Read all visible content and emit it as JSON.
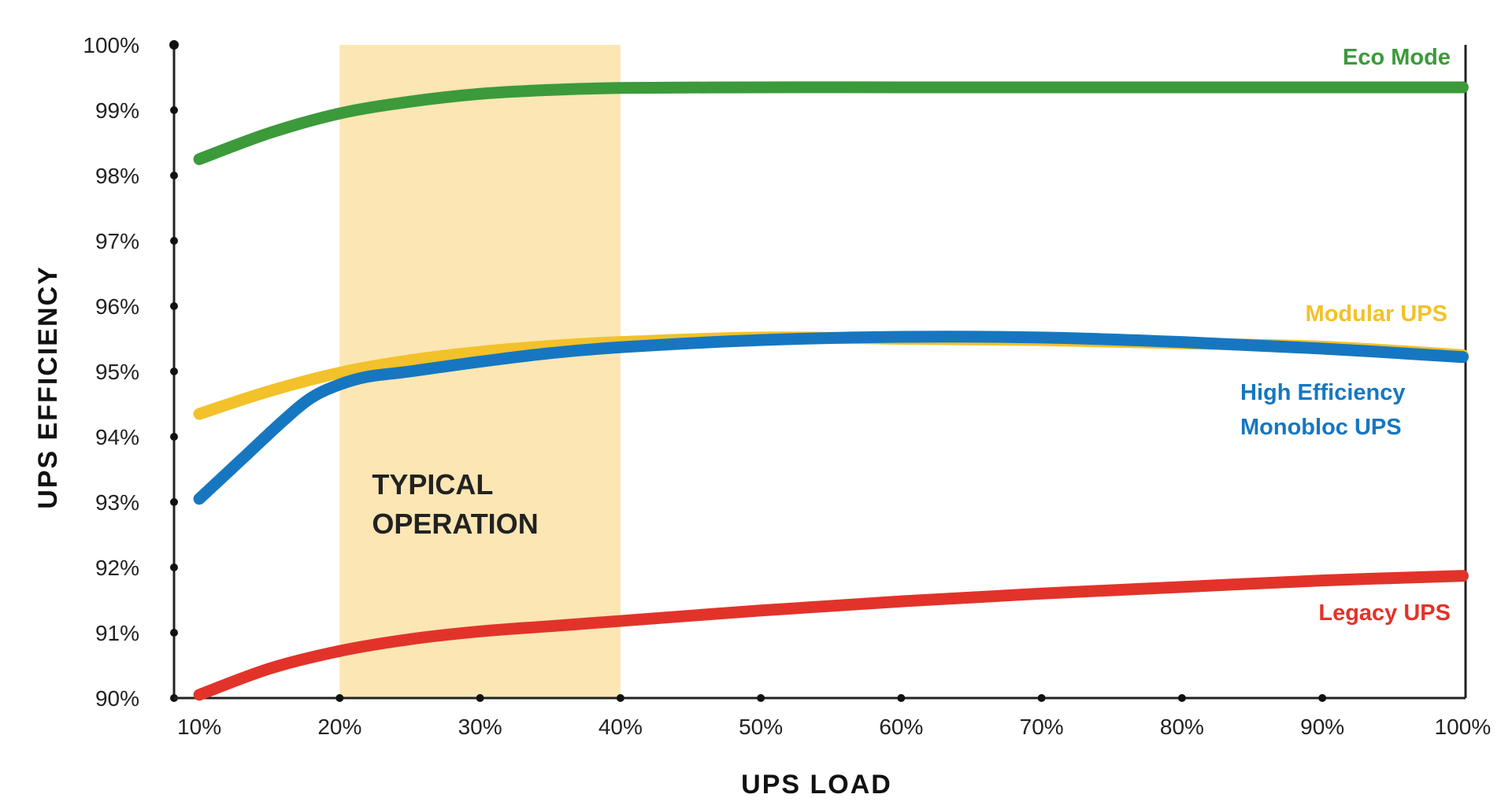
{
  "chart_data": {
    "type": "line",
    "xlabel": "UPS LOAD",
    "ylabel": "UPS EFFICIENCY",
    "x_ticks": [
      "10%",
      "20%",
      "30%",
      "40%",
      "50%",
      "60%",
      "70%",
      "80%",
      "90%",
      "100%"
    ],
    "y_ticks": [
      "90%",
      "91%",
      "92%",
      "93%",
      "94%",
      "95%",
      "96%",
      "97%",
      "98%",
      "99%",
      "100%"
    ],
    "xlim": [
      8.2,
      100.2
    ],
    "ylim": [
      90,
      100
    ],
    "grid": false,
    "highlight_band": {
      "x_range": [
        20,
        40
      ],
      "label_lines": [
        "TYPICAL",
        "OPERATION"
      ],
      "color": "#fbe6b4"
    },
    "series": [
      {
        "name": "Eco Mode",
        "color": "#3c9a3a",
        "x": [
          10,
          15,
          20,
          25,
          30,
          35,
          40,
          50,
          60,
          70,
          80,
          90,
          100
        ],
        "y": [
          98.25,
          98.65,
          98.95,
          99.13,
          99.25,
          99.31,
          99.34,
          99.35,
          99.35,
          99.35,
          99.35,
          99.35,
          99.35
        ]
      },
      {
        "name": "Modular UPS",
        "color": "#f3c12a",
        "x": [
          10,
          15,
          20,
          25,
          30,
          35,
          40,
          50,
          60,
          70,
          80,
          90,
          100
        ],
        "y": [
          94.35,
          94.7,
          94.98,
          95.17,
          95.3,
          95.39,
          95.45,
          95.52,
          95.5,
          95.48,
          95.43,
          95.38,
          95.25
        ]
      },
      {
        "name": "High Efficiency Monobloc UPS",
        "label_lines": [
          "High Efficiency",
          "Monobloc UPS"
        ],
        "color": "#1677c0",
        "x": [
          10,
          13,
          16,
          18,
          20,
          22,
          25,
          30,
          35,
          40,
          50,
          60,
          70,
          80,
          90,
          100
        ],
        "y": [
          93.05,
          93.65,
          94.25,
          94.6,
          94.8,
          94.92,
          95.0,
          95.15,
          95.28,
          95.37,
          95.48,
          95.53,
          95.52,
          95.45,
          95.35,
          95.22
        ]
      },
      {
        "name": "Legacy UPS",
        "color": "#e2332a",
        "x": [
          10,
          15,
          20,
          25,
          30,
          35,
          40,
          50,
          60,
          70,
          80,
          90,
          100
        ],
        "y": [
          90.05,
          90.45,
          90.72,
          90.9,
          91.02,
          91.1,
          91.18,
          91.34,
          91.48,
          91.6,
          91.7,
          91.8,
          91.87
        ]
      }
    ]
  }
}
